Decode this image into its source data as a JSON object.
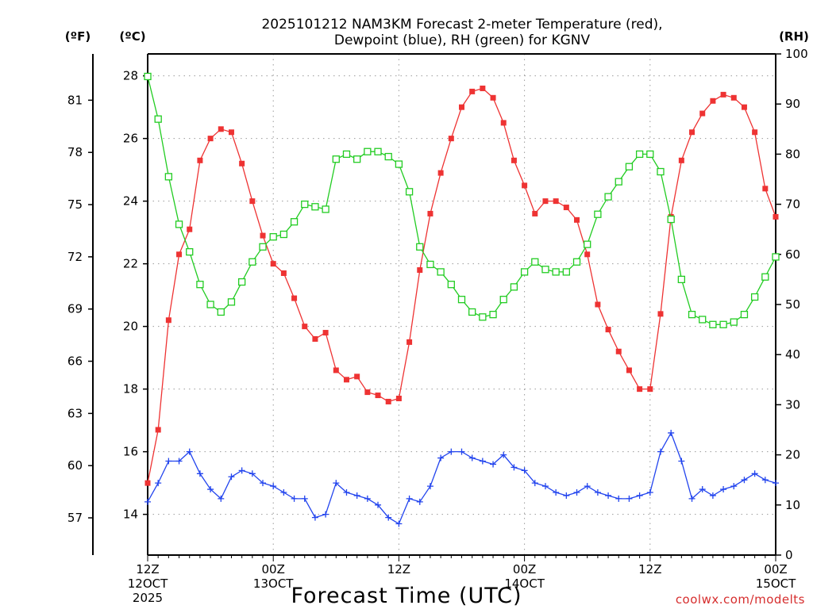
{
  "chart_data": {
    "type": "line",
    "title_line1": "2025101212 NAM3KM Forecast 2-meter Temperature (red),",
    "title_line2": "Dewpoint (blue), RH (green) for KGNV",
    "xlabel": "Forecast Time (UTC)",
    "credit": "coolwx.com/modelts",
    "unit_f": "(ºF)",
    "unit_c": "(ºC)",
    "unit_rh": "(RH)",
    "x_hours_range": [
      0,
      60
    ],
    "ylim_c": [
      12.7,
      28.7
    ],
    "ylim_rh": [
      0,
      100
    ],
    "xticks": [
      {
        "hour": 0,
        "line1": "12Z",
        "line2": "12OCT",
        "line3": "2025"
      },
      {
        "hour": 12,
        "line1": "00Z",
        "line2": "13OCT",
        "line3": ""
      },
      {
        "hour": 24,
        "line1": "12Z",
        "line2": "",
        "line3": ""
      },
      {
        "hour": 36,
        "line1": "00Z",
        "line2": "14OCT",
        "line3": ""
      },
      {
        "hour": 48,
        "line1": "12Z",
        "line2": "",
        "line3": ""
      },
      {
        "hour": 60,
        "line1": "00Z",
        "line2": "15OCT",
        "line3": ""
      }
    ],
    "yticks_c": [
      14,
      16,
      18,
      20,
      22,
      24,
      26,
      28
    ],
    "yticks_f": [
      57,
      60,
      63,
      66,
      69,
      72,
      75,
      78,
      81
    ],
    "yticks_rh": [
      0,
      10,
      20,
      30,
      40,
      50,
      60,
      70,
      80,
      90,
      100
    ],
    "series": [
      {
        "name": "Temperature",
        "color": "#ee3333",
        "marker": "filled-square",
        "axis": "c",
        "values": [
          15.0,
          16.7,
          20.2,
          22.3,
          23.1,
          25.3,
          26.0,
          26.3,
          26.2,
          25.2,
          24.0,
          22.9,
          22.0,
          21.7,
          20.9,
          20.0,
          19.6,
          19.8,
          18.6,
          18.3,
          18.4,
          17.9,
          17.8,
          17.6,
          17.7,
          19.5,
          21.8,
          23.6,
          24.9,
          26.0,
          27.0,
          27.5,
          27.6,
          27.3,
          26.5,
          25.3,
          24.5,
          23.6,
          24.0,
          24.0,
          23.8,
          23.4,
          22.3,
          20.7,
          19.9,
          19.2,
          18.6,
          18.0,
          18.0,
          20.4,
          23.5,
          25.3,
          26.2,
          26.8,
          27.2,
          27.4,
          27.3,
          27.0,
          26.2,
          24.4,
          23.5
        ]
      },
      {
        "name": "Dewpoint",
        "color": "#2244ee",
        "marker": "plus",
        "axis": "c",
        "values": [
          14.4,
          15.0,
          15.7,
          15.7,
          16.0,
          15.3,
          14.8,
          14.5,
          15.2,
          15.4,
          15.3,
          15.0,
          14.9,
          14.7,
          14.5,
          14.5,
          13.9,
          14.0,
          15.0,
          14.7,
          14.6,
          14.5,
          14.3,
          13.9,
          13.7,
          14.5,
          14.4,
          14.9,
          15.8,
          16.0,
          16.0,
          15.8,
          15.7,
          15.6,
          15.9,
          15.5,
          15.4,
          15.0,
          14.9,
          14.7,
          14.6,
          14.7,
          14.9,
          14.7,
          14.6,
          14.5,
          14.5,
          14.6,
          14.7,
          16.0,
          16.6,
          15.7,
          14.5,
          14.8,
          14.6,
          14.8,
          14.9,
          15.1,
          15.3,
          15.1,
          15.0
        ]
      },
      {
        "name": "RH",
        "color": "#22cc22",
        "marker": "open-square",
        "axis": "rh",
        "values": [
          95.5,
          87.0,
          75.5,
          66.0,
          60.5,
          54.0,
          50.0,
          48.5,
          50.5,
          54.5,
          58.5,
          61.5,
          63.5,
          64.0,
          66.5,
          70.0,
          69.5,
          69.0,
          79.0,
          80.0,
          79.0,
          80.5,
          80.5,
          79.5,
          78.0,
          72.5,
          61.5,
          58.0,
          56.5,
          54.0,
          51.0,
          48.5,
          47.5,
          48.0,
          51.0,
          53.5,
          56.5,
          58.5,
          57.0,
          56.5,
          56.5,
          58.5,
          62.0,
          68.0,
          71.5,
          74.5,
          77.5,
          80.0,
          80.0,
          76.5,
          67.0,
          55.0,
          48.0,
          47.0,
          46.0,
          46.0,
          46.5,
          48.0,
          51.5,
          55.5,
          59.5
        ]
      }
    ]
  }
}
